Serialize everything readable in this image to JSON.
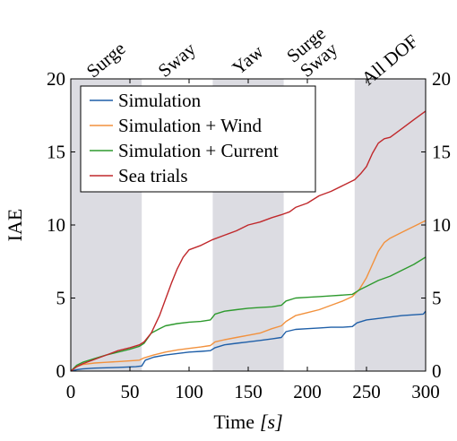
{
  "chart_data": {
    "type": "line",
    "xlabel": "Time",
    "xlabel_unit": "[s]",
    "ylabel": "IAE",
    "xlim": [
      0,
      300
    ],
    "ylim": [
      0,
      20
    ],
    "x_ticks": [
      "0",
      "50",
      "100",
      "150",
      "200",
      "250",
      "300"
    ],
    "y_ticks": [
      "0",
      "5",
      "10",
      "15",
      "20"
    ],
    "grid": false,
    "legend_position": "top-left",
    "shaded_intervals": [
      [
        0,
        60
      ],
      [
        120,
        180
      ],
      [
        240,
        300
      ]
    ],
    "segments": [
      {
        "lines": [
          "Surge"
        ],
        "x": 30
      },
      {
        "lines": [
          "Sway"
        ],
        "x": 90
      },
      {
        "lines": [
          "Yaw"
        ],
        "x": 150
      },
      {
        "lines": [
          "Surge",
          "Sway"
        ],
        "x": 210
      },
      {
        "lines": [
          "All DOF"
        ],
        "x": 270
      }
    ],
    "series": [
      {
        "name": "Simulation",
        "color": "#1f5fa8",
        "points": [
          [
            0,
            0
          ],
          [
            5,
            0.1
          ],
          [
            10,
            0.15
          ],
          [
            20,
            0.2
          ],
          [
            40,
            0.25
          ],
          [
            55,
            0.3
          ],
          [
            60,
            0.35
          ],
          [
            63,
            0.75
          ],
          [
            70,
            0.95
          ],
          [
            80,
            1.1
          ],
          [
            90,
            1.2
          ],
          [
            100,
            1.3
          ],
          [
            110,
            1.35
          ],
          [
            118,
            1.4
          ],
          [
            122,
            1.6
          ],
          [
            130,
            1.8
          ],
          [
            140,
            1.9
          ],
          [
            150,
            2.0
          ],
          [
            160,
            2.1
          ],
          [
            170,
            2.2
          ],
          [
            178,
            2.3
          ],
          [
            182,
            2.7
          ],
          [
            190,
            2.85
          ],
          [
            200,
            2.9
          ],
          [
            210,
            2.95
          ],
          [
            220,
            3.0
          ],
          [
            230,
            3.0
          ],
          [
            238,
            3.05
          ],
          [
            242,
            3.3
          ],
          [
            250,
            3.5
          ],
          [
            260,
            3.6
          ],
          [
            270,
            3.7
          ],
          [
            280,
            3.8
          ],
          [
            290,
            3.85
          ],
          [
            298,
            3.9
          ],
          [
            300,
            4.1
          ]
        ]
      },
      {
        "name": "Simulation + Wind",
        "color": "#f2913d",
        "points": [
          [
            0,
            0
          ],
          [
            5,
            0.3
          ],
          [
            10,
            0.45
          ],
          [
            20,
            0.55
          ],
          [
            30,
            0.6
          ],
          [
            40,
            0.65
          ],
          [
            50,
            0.7
          ],
          [
            58,
            0.75
          ],
          [
            62,
            0.9
          ],
          [
            70,
            1.1
          ],
          [
            80,
            1.3
          ],
          [
            90,
            1.45
          ],
          [
            100,
            1.55
          ],
          [
            110,
            1.65
          ],
          [
            118,
            1.75
          ],
          [
            122,
            2.0
          ],
          [
            130,
            2.15
          ],
          [
            140,
            2.3
          ],
          [
            150,
            2.45
          ],
          [
            160,
            2.6
          ],
          [
            170,
            2.9
          ],
          [
            178,
            3.1
          ],
          [
            182,
            3.4
          ],
          [
            190,
            3.8
          ],
          [
            200,
            4.0
          ],
          [
            210,
            4.2
          ],
          [
            220,
            4.5
          ],
          [
            230,
            4.8
          ],
          [
            238,
            5.1
          ],
          [
            244,
            5.6
          ],
          [
            250,
            6.4
          ],
          [
            255,
            7.3
          ],
          [
            260,
            8.2
          ],
          [
            265,
            8.8
          ],
          [
            270,
            9.1
          ],
          [
            280,
            9.5
          ],
          [
            290,
            9.9
          ],
          [
            300,
            10.3
          ]
        ]
      },
      {
        "name": "Simulation + Current",
        "color": "#2e9a2e",
        "points": [
          [
            0,
            0
          ],
          [
            5,
            0.4
          ],
          [
            10,
            0.6
          ],
          [
            20,
            0.85
          ],
          [
            30,
            1.1
          ],
          [
            40,
            1.3
          ],
          [
            50,
            1.5
          ],
          [
            58,
            1.7
          ],
          [
            62,
            1.9
          ],
          [
            68,
            2.6
          ],
          [
            75,
            2.9
          ],
          [
            80,
            3.1
          ],
          [
            90,
            3.25
          ],
          [
            100,
            3.35
          ],
          [
            110,
            3.4
          ],
          [
            118,
            3.5
          ],
          [
            122,
            3.9
          ],
          [
            130,
            4.1
          ],
          [
            140,
            4.2
          ],
          [
            150,
            4.3
          ],
          [
            160,
            4.35
          ],
          [
            170,
            4.4
          ],
          [
            178,
            4.5
          ],
          [
            182,
            4.8
          ],
          [
            190,
            5.0
          ],
          [
            200,
            5.05
          ],
          [
            210,
            5.1
          ],
          [
            220,
            5.15
          ],
          [
            230,
            5.2
          ],
          [
            238,
            5.25
          ],
          [
            245,
            5.6
          ],
          [
            250,
            5.8
          ],
          [
            260,
            6.2
          ],
          [
            270,
            6.5
          ],
          [
            280,
            6.9
          ],
          [
            290,
            7.3
          ],
          [
            300,
            7.8
          ]
        ]
      },
      {
        "name": "Sea trials",
        "color": "#c0282b",
        "points": [
          [
            0,
            0
          ],
          [
            5,
            0.3
          ],
          [
            10,
            0.5
          ],
          [
            20,
            0.8
          ],
          [
            30,
            1.1
          ],
          [
            40,
            1.4
          ],
          [
            50,
            1.6
          ],
          [
            58,
            1.8
          ],
          [
            62,
            2.0
          ],
          [
            68,
            2.6
          ],
          [
            75,
            3.8
          ],
          [
            80,
            4.9
          ],
          [
            85,
            6.0
          ],
          [
            90,
            7.0
          ],
          [
            95,
            7.8
          ],
          [
            100,
            8.3
          ],
          [
            110,
            8.6
          ],
          [
            120,
            9.0
          ],
          [
            130,
            9.3
          ],
          [
            140,
            9.6
          ],
          [
            150,
            10.0
          ],
          [
            160,
            10.2
          ],
          [
            170,
            10.5
          ],
          [
            178,
            10.7
          ],
          [
            185,
            10.9
          ],
          [
            190,
            11.2
          ],
          [
            200,
            11.5
          ],
          [
            210,
            12.0
          ],
          [
            220,
            12.3
          ],
          [
            230,
            12.7
          ],
          [
            240,
            13.1
          ],
          [
            245,
            13.5
          ],
          [
            250,
            14.0
          ],
          [
            255,
            14.9
          ],
          [
            260,
            15.6
          ],
          [
            265,
            15.9
          ],
          [
            270,
            16.0
          ],
          [
            280,
            16.6
          ],
          [
            290,
            17.2
          ],
          [
            300,
            17.8
          ]
        ]
      }
    ]
  }
}
